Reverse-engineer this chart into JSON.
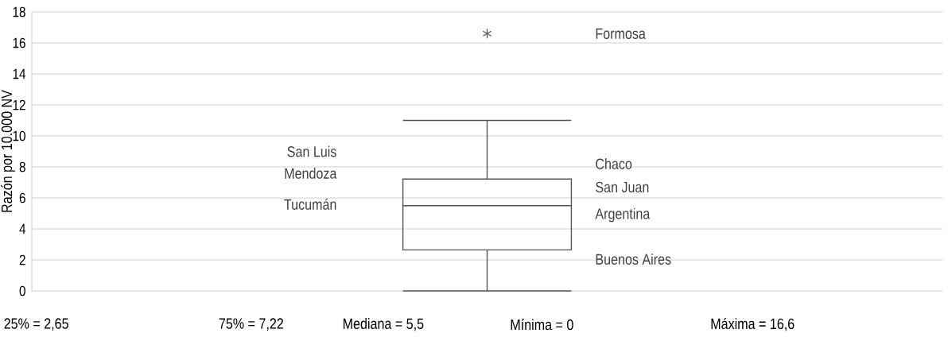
{
  "chart_data": {
    "type": "box",
    "ylabel": "Razón por 10.000 NV",
    "categories": [
      null
    ],
    "series": [
      {
        "color": "#555555",
        "boxes": [
          {
            "low": 0,
            "q1": 2.65,
            "median": 5.5,
            "q3": 7.22,
            "high": 11,
            "outliers": [
              16.6
            ]
          }
        ]
      }
    ],
    "ylim": [
      0,
      18
    ],
    "yticks": [
      0,
      2,
      4,
      6,
      8,
      10,
      12,
      14,
      16,
      18
    ],
    "grid": "y",
    "marker": "star",
    "tick_labels": "y",
    "annotations": [
      "Formosa",
      "San Luis",
      "Mendoza",
      "Tucumán",
      "Chaco",
      "San Juan",
      "Argentina",
      "Buenos Aires",
      "25% = 2,65",
      "75% = 7,22",
      "Mediana = 5,5",
      "Mínima = 0",
      "Máxima = 16,6"
    ]
  }
}
